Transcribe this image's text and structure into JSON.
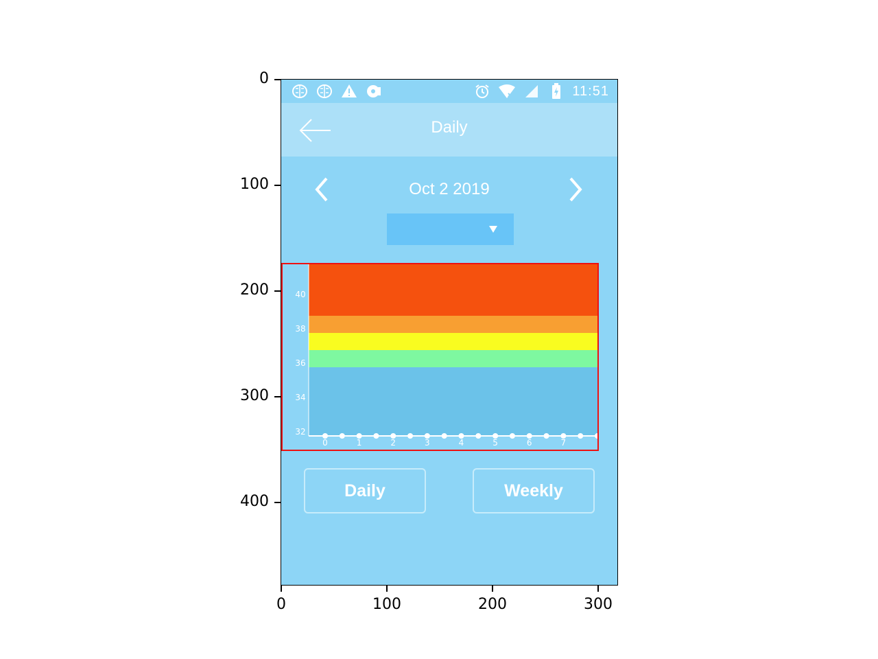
{
  "status_bar": {
    "left_icons": [
      "brain-icon",
      "brain-icon",
      "warning-icon",
      "vinyl-icon"
    ],
    "right_icons": [
      "alarm-icon",
      "wifi-icon",
      "signal-icon",
      "battery-charging-icon"
    ],
    "time": "11:51"
  },
  "app_bar": {
    "title": "Daily",
    "back_icon": "arrow-left-icon"
  },
  "date_nav": {
    "date": "Oct 2 2019",
    "prev_icon": "chevron-left-icon",
    "next_icon": "chevron-right-icon"
  },
  "dropdown": {
    "value": "",
    "arrow_icon": "caret-down-icon"
  },
  "chart_data": {
    "type": "area",
    "y_ticks": [
      "32",
      "34",
      "36",
      "38",
      "40"
    ],
    "x_ticks": [
      "0",
      "1",
      "2",
      "3",
      "4",
      "5",
      "6",
      "7"
    ],
    "ylim": [
      32,
      42
    ],
    "xlim": [
      0,
      8
    ],
    "bands": [
      {
        "from": 32,
        "to": 36,
        "color": "#6bc2e9"
      },
      {
        "from": 36,
        "to": 37,
        "color": "#7ef8a0"
      },
      {
        "from": 37,
        "to": 38,
        "color": "#f9fc20"
      },
      {
        "from": 38,
        "to": 39,
        "color": "#f89f32"
      },
      {
        "from": 39,
        "to": 42,
        "color": "#f5510e"
      }
    ],
    "points_x": [
      0,
      0.5,
      1,
      1.5,
      2,
      2.5,
      3,
      3.5,
      4,
      4.5,
      5,
      5.5,
      6,
      6.5,
      7,
      7.5,
      8
    ],
    "points_y": [
      32,
      32,
      32,
      32,
      32,
      32,
      32,
      32,
      32,
      32,
      32,
      32,
      32,
      32,
      32,
      32,
      32
    ]
  },
  "buttons": {
    "daily": "Daily",
    "weekly": "Weekly"
  },
  "outer_axes": {
    "y_ticks": [
      "0",
      "100",
      "200",
      "300",
      "400"
    ],
    "x_ticks": [
      "0",
      "100",
      "200",
      "300"
    ]
  },
  "colors": {
    "background": "#8dd5f6",
    "app_bar": "#ace0f8",
    "dropdown": "#68c4f7",
    "highlight": "#ee1111"
  }
}
